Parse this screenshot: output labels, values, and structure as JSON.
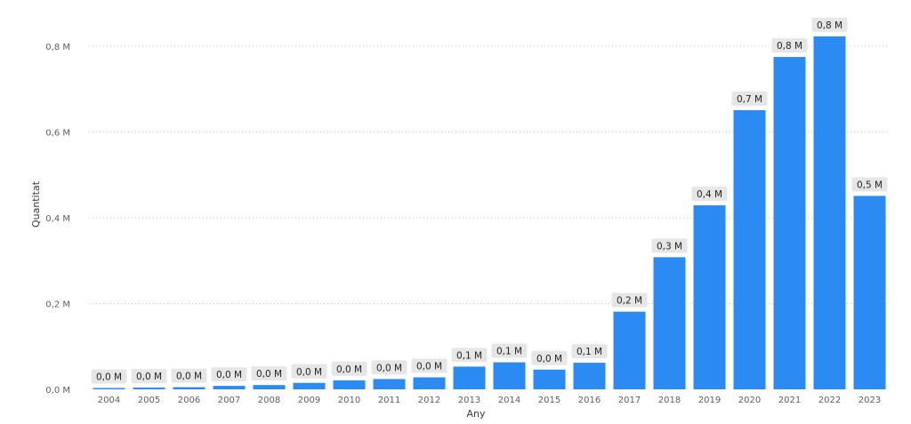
{
  "chart_data": {
    "type": "bar",
    "xlabel": "Any",
    "ylabel": "Quantitat",
    "ylim": [
      0,
      0.86
    ],
    "yticks": [
      0.0,
      0.2,
      0.4,
      0.6,
      0.8
    ],
    "ytick_labels": [
      "0,0 M",
      "0,2 M",
      "0,4 M",
      "0,6 M",
      "0,8 M"
    ],
    "grid": true,
    "bar_color": "#2b8bf2",
    "categories": [
      "2004",
      "2005",
      "2006",
      "2007",
      "2008",
      "2009",
      "2010",
      "2011",
      "2012",
      "2013",
      "2014",
      "2015",
      "2016",
      "2017",
      "2018",
      "2019",
      "2020",
      "2021",
      "2022",
      "2023"
    ],
    "values": [
      0.003,
      0.004,
      0.005,
      0.008,
      0.01,
      0.015,
      0.021,
      0.024,
      0.028,
      0.053,
      0.063,
      0.046,
      0.062,
      0.181,
      0.308,
      0.429,
      0.651,
      0.775,
      0.823,
      0.451
    ],
    "data_labels": [
      "0,0 M",
      "0,0 M",
      "0,0 M",
      "0,0 M",
      "0,0 M",
      "0,0 M",
      "0,0 M",
      "0,0 M",
      "0,0 M",
      "0,1 M",
      "0,1 M",
      "0,0 M",
      "0,1 M",
      "0,2 M",
      "0,3 M",
      "0,4 M",
      "0,7 M",
      "0,8 M",
      "0,8 M",
      "0,5 M"
    ]
  }
}
